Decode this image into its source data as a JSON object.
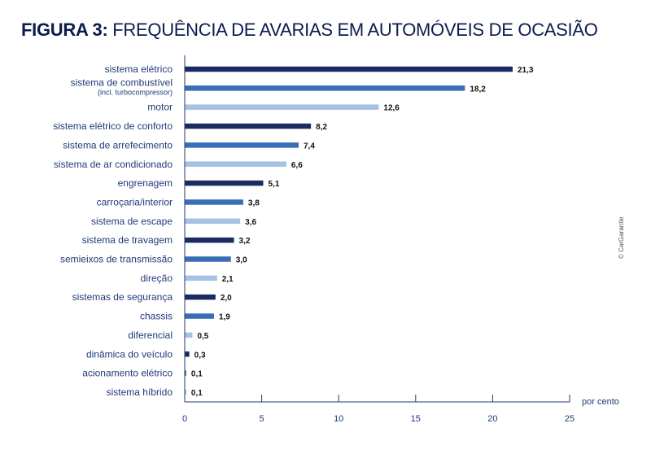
{
  "title": {
    "prefix": "FIGURA 3:",
    "text": "FREQUÊNCIA DE AVARIAS EM AUTOMÓVEIS DE OCASIÃO"
  },
  "credit": "© CarGarantie",
  "colors": {
    "dark": "#1b2a63",
    "mid": "#3a6db5",
    "light": "#a6c2e3"
  },
  "chart_data": {
    "type": "bar",
    "orientation": "horizontal",
    "title": "FIGURA 3: FREQUÊNCIA DE AVARIAS EM AUTOMÓVEIS DE OCASIÃO",
    "xlabel": "por cento",
    "xlim": [
      0,
      25
    ],
    "xticks": [
      "0",
      "5",
      "10",
      "15",
      "20",
      "25"
    ],
    "categories": [
      "sistema elétrico",
      "sistema de combustível",
      "motor",
      "sistema elétrico de conforto",
      "sistema de arrefecimento",
      "sistema de ar condicionado",
      "engrenagem",
      "carroçaria/interior",
      "sistema de escape",
      "sistema de travagem",
      "semieixos de transmissão",
      "direção",
      "sistemas de segurança",
      "chassis",
      "diferencial",
      "dinâmica do veículo",
      "acionamento elétrico",
      "sistema híbrido"
    ],
    "category_notes": {
      "1": "(incl. turbocompressor)"
    },
    "values": [
      21.3,
      18.2,
      12.6,
      8.2,
      7.4,
      6.6,
      5.1,
      3.8,
      3.6,
      3.2,
      3.0,
      2.1,
      2.0,
      1.9,
      0.5,
      0.3,
      0.1,
      0.1
    ],
    "value_labels": [
      "21,3",
      "18,2",
      "12,6",
      "8,2",
      "7,4",
      "6,6",
      "5,1",
      "3,8",
      "3,6",
      "3,2",
      "3,0",
      "2,1",
      "2,0",
      "1,9",
      "0,5",
      "0,3",
      "0,1",
      "0,1"
    ],
    "bar_colors": [
      "dark",
      "mid",
      "light",
      "dark",
      "mid",
      "light",
      "dark",
      "mid",
      "light",
      "dark",
      "mid",
      "light",
      "dark",
      "mid",
      "light",
      "dark",
      "mid",
      "light"
    ]
  }
}
